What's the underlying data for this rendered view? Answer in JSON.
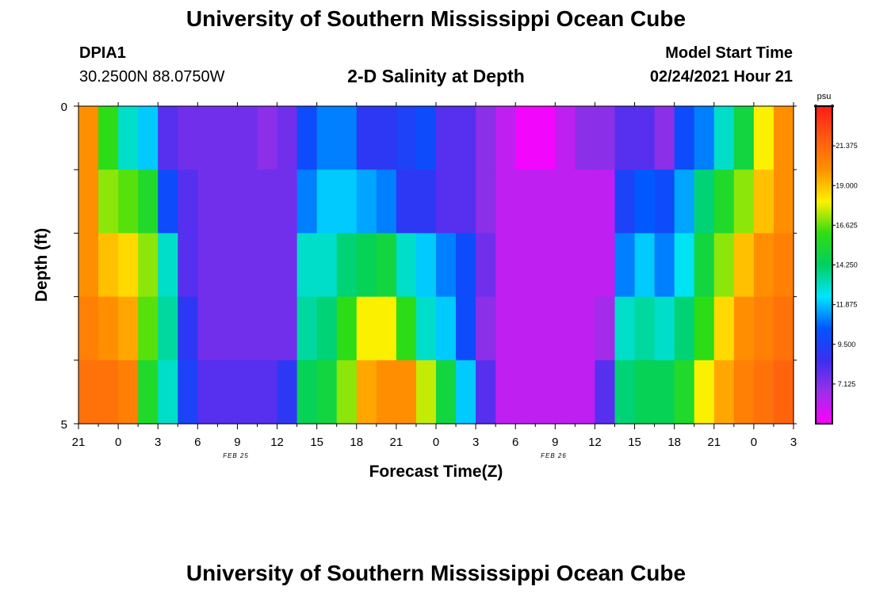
{
  "page": {
    "title_top": "University of Southern Mississippi Ocean Cube",
    "title_bottom": "University of Southern Mississippi Ocean Cube",
    "station_id": "DPIA1",
    "station_coords": "30.2500N 88.0750W",
    "model_start_label": "Model Start Time",
    "model_start_value": "02/24/2021 Hour 21"
  },
  "chart_data": {
    "type": "heatmap",
    "title": "2-D Salinity at Depth",
    "xlabel": "Forecast Time(Z)",
    "ylabel": "Depth (ft)",
    "units": "psu",
    "xlim": [
      0,
      54
    ],
    "ylim": [
      0,
      5
    ],
    "x_tick_labels": [
      "21",
      "0",
      "3",
      "6",
      "9",
      "12",
      "15",
      "18",
      "21",
      "0",
      "3",
      "6",
      "9",
      "12",
      "15",
      "18",
      "21",
      "0",
      "3"
    ],
    "y_tick_labels": [
      "0",
      "5"
    ],
    "date_labels": [
      {
        "hour": 15,
        "text": "FEB 25"
      },
      {
        "hour": 39,
        "text": "FEB 26"
      }
    ],
    "colorbar": {
      "min": 4.75,
      "max": 23.75,
      "ticks": [
        7.125,
        9.5,
        11.875,
        14.25,
        16.625,
        19.0,
        21.375
      ],
      "tick_labels": [
        "7.125",
        "9.500",
        "11.875",
        "14.250",
        "16.625",
        "19.000",
        "21.375"
      ]
    },
    "depth_layers": [
      0,
      1,
      2,
      3,
      4,
      5
    ],
    "time_hours": [
      0,
      1.5,
      3,
      4.5,
      6,
      7.5,
      9,
      10.5,
      12,
      13.5,
      15,
      16.5,
      18,
      19.5,
      21,
      22.5,
      24,
      25.5,
      27,
      28.5,
      30,
      31.5,
      33,
      34.5,
      36,
      37.5,
      39,
      40.5,
      42,
      43.5,
      45,
      46.5,
      48,
      49.5,
      51,
      52.5
    ],
    "salinity": [
      [
        20.0,
        16.0,
        13.0,
        12.0,
        8.0,
        7.5,
        7.5,
        7.5,
        7.5,
        7.0,
        7.5,
        10.0,
        11.0,
        11.0,
        9.0,
        9.0,
        9.5,
        10.0,
        8.0,
        8.0,
        7.0,
        6.0,
        5.0,
        5.0,
        6.0,
        7.0,
        7.0,
        8.0,
        8.0,
        7.0,
        10.0,
        11.0,
        13.0,
        15.0,
        18.0,
        20.0
      ],
      [
        20.0,
        17.0,
        16.5,
        15.5,
        10.0,
        8.0,
        7.5,
        7.5,
        7.5,
        7.5,
        7.5,
        11.0,
        12.0,
        12.0,
        11.5,
        11.0,
        9.0,
        9.0,
        8.0,
        8.0,
        7.0,
        6.0,
        6.0,
        6.0,
        6.0,
        6.0,
        6.0,
        9.5,
        10.5,
        10.0,
        11.5,
        14.0,
        15.5,
        17.0,
        19.0,
        20.0
      ],
      [
        20.0,
        19.0,
        18.5,
        17.0,
        13.0,
        8.0,
        7.5,
        7.5,
        7.5,
        7.5,
        7.5,
        13.0,
        13.0,
        14.0,
        14.5,
        15.0,
        13.0,
        12.0,
        11.0,
        10.0,
        7.5,
        6.0,
        6.0,
        6.0,
        6.0,
        6.0,
        6.0,
        11.0,
        12.0,
        11.0,
        12.5,
        15.0,
        17.0,
        19.0,
        20.0,
        20.5
      ],
      [
        20.5,
        20.0,
        19.5,
        16.5,
        13.5,
        9.0,
        7.5,
        7.5,
        7.5,
        7.5,
        7.5,
        13.5,
        14.0,
        16.0,
        18.0,
        18.0,
        16.0,
        13.0,
        12.0,
        10.0,
        7.0,
        6.0,
        6.0,
        6.0,
        6.0,
        6.0,
        6.5,
        13.0,
        13.5,
        13.0,
        14.0,
        16.0,
        18.5,
        20.0,
        20.5,
        21.0
      ],
      [
        21.0,
        21.0,
        20.5,
        15.5,
        13.0,
        9.5,
        8.0,
        8.0,
        8.0,
        8.0,
        9.0,
        14.5,
        15.0,
        17.0,
        19.5,
        20.0,
        20.0,
        17.5,
        15.0,
        12.0,
        8.0,
        6.0,
        6.0,
        6.0,
        6.0,
        6.0,
        8.0,
        14.0,
        14.5,
        14.5,
        15.5,
        18.0,
        19.5,
        20.5,
        21.0,
        21.5
      ],
      [
        21.5,
        22.0,
        21.0,
        16.0,
        13.5,
        10.5,
        8.5,
        8.0,
        8.0,
        8.0,
        10.5,
        15.0,
        15.5,
        18.0,
        20.5,
        21.0,
        21.0,
        19.0,
        17.0,
        13.0,
        8.5,
        6.0,
        6.0,
        6.0,
        6.0,
        6.0,
        10.0,
        14.0,
        14.5,
        15.0,
        16.5,
        19.0,
        20.5,
        21.0,
        22.0,
        22.5
      ]
    ]
  }
}
